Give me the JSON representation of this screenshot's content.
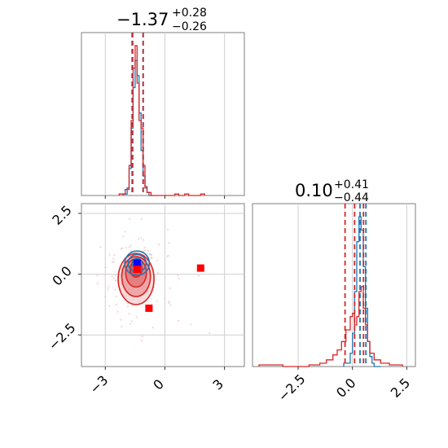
{
  "chart_data": [
    {
      "type": "histogram",
      "panel": "top-left",
      "title": {
        "value": "−1.37",
        "plus": "+0.28",
        "minus": "−0.26"
      },
      "xlim": [
        -4.2,
        4.0
      ],
      "grid": true,
      "xticks": [
        -3,
        0,
        3
      ],
      "blue_hist": {
        "edges": [
          -2.1,
          -1.9,
          -1.8,
          -1.7,
          -1.6,
          -1.5,
          -1.4,
          -1.3,
          -1.2,
          -1.1,
          -1.0,
          -0.9,
          -0.8,
          -0.6
        ],
        "values": [
          0.01,
          0.05,
          0.18,
          0.45,
          0.72,
          0.9,
          0.8,
          0.55,
          0.3,
          0.13,
          0.05,
          0.02,
          0.0
        ]
      },
      "red_hist": {
        "edges": [
          -2.3,
          -2.0,
          -1.8,
          -1.7,
          -1.6,
          -1.5,
          -1.4,
          -1.3,
          -1.2,
          -1.1,
          -1.0,
          -0.9,
          -0.7,
          0.5,
          0.7,
          1.0,
          1.2,
          1.8,
          2.0
        ],
        "values": [
          0.01,
          0.04,
          0.2,
          0.5,
          0.85,
          1.0,
          0.75,
          0.5,
          0.45,
          0.2,
          0.06,
          0.02,
          0.0,
          0.01,
          0.0,
          0.01,
          0.0,
          0.01
        ]
      },
      "red_quantiles": [
        -1.65,
        -1.09
      ],
      "blue_quantiles": [
        -1.62,
        -1.1
      ]
    },
    {
      "type": "scatter",
      "panel": "bottom-left",
      "xlim": [
        -4.2,
        4.0
      ],
      "ylim": [
        -3.8,
        2.9
      ],
      "grid": true,
      "xticks": [
        -3,
        0,
        3
      ],
      "yticks": [
        -2.5,
        0.0,
        2.5
      ],
      "ytick_labels": [
        "−2.5",
        "0.0",
        "2.5"
      ],
      "xtick_labels": [
        "−3",
        "0",
        "3"
      ],
      "red_contours": [
        {
          "cx": -1.45,
          "cy": -0.2,
          "rx": 0.9,
          "ry": 1.05
        },
        {
          "cx": -1.45,
          "cy": -0.1,
          "rx": 0.72,
          "ry": 0.82
        },
        {
          "cx": -1.45,
          "cy": 0.05,
          "rx": 0.52,
          "ry": 0.58
        },
        {
          "cx": -1.45,
          "cy": 0.2,
          "rx": 0.3,
          "ry": 0.32
        }
      ],
      "blue_contours": [
        {
          "cx": -1.4,
          "cy": 0.45,
          "rx": 0.62,
          "ry": 0.5
        },
        {
          "cx": -1.4,
          "cy": 0.45,
          "rx": 0.45,
          "ry": 0.36
        },
        {
          "cx": -1.4,
          "cy": 0.45,
          "rx": 0.25,
          "ry": 0.2
        }
      ],
      "markers": [
        {
          "x": -1.4,
          "y": 0.45,
          "color": "#0000ff"
        },
        {
          "x": -1.4,
          "y": 0.2,
          "color": "#ff0000"
        },
        {
          "x": 1.8,
          "y": 0.25,
          "color": "#ff0000"
        },
        {
          "x": -0.8,
          "y": -1.4,
          "color": "#ff0000"
        }
      ]
    },
    {
      "type": "histogram",
      "panel": "bottom-right",
      "title": {
        "value": "0.10",
        "plus": "+0.41",
        "minus": "−0.44"
      },
      "xlim": [
        -4.6,
        2.9
      ],
      "grid": true,
      "xticks": [
        -2.5,
        0.0,
        2.5
      ],
      "xtick_labels": [
        "−2.5",
        "0.0",
        "2.5"
      ],
      "blue_hist": {
        "edges": [
          -0.4,
          -0.1,
          0.0,
          0.1,
          0.2,
          0.3,
          0.4,
          0.5,
          0.6,
          0.7,
          0.8,
          0.9,
          1.0,
          1.3
        ],
        "values": [
          0.02,
          0.08,
          0.2,
          0.45,
          0.75,
          0.9,
          0.82,
          0.6,
          0.35,
          0.15,
          0.06,
          0.02,
          0.0
        ]
      },
      "red_hist": {
        "edges": [
          -4.3,
          -3.2,
          -2.0,
          -1.5,
          -1.2,
          -0.9,
          -0.7,
          -0.5,
          -0.3,
          -0.1,
          0.0,
          0.1,
          0.2,
          0.3,
          0.4,
          0.5,
          0.6,
          0.7,
          0.8,
          1.0,
          1.3,
          1.7,
          2.3
        ],
        "values": [
          0.01,
          0.0,
          0.01,
          0.02,
          0.04,
          0.07,
          0.1,
          0.15,
          0.22,
          0.3,
          0.32,
          0.25,
          0.3,
          0.45,
          0.48,
          0.35,
          0.25,
          0.15,
          0.08,
          0.04,
          0.02,
          0.01
        ]
      },
      "red_quantiles": [
        -0.34,
        0.1,
        0.51
      ],
      "blue_quantiles": [
        0.35,
        0.62
      ]
    }
  ],
  "colors": {
    "blue": "#1f77b4",
    "red": "#d62728",
    "red_fill_outer": "#f4c6c6",
    "red_fill_inner": "#e98c8c"
  }
}
